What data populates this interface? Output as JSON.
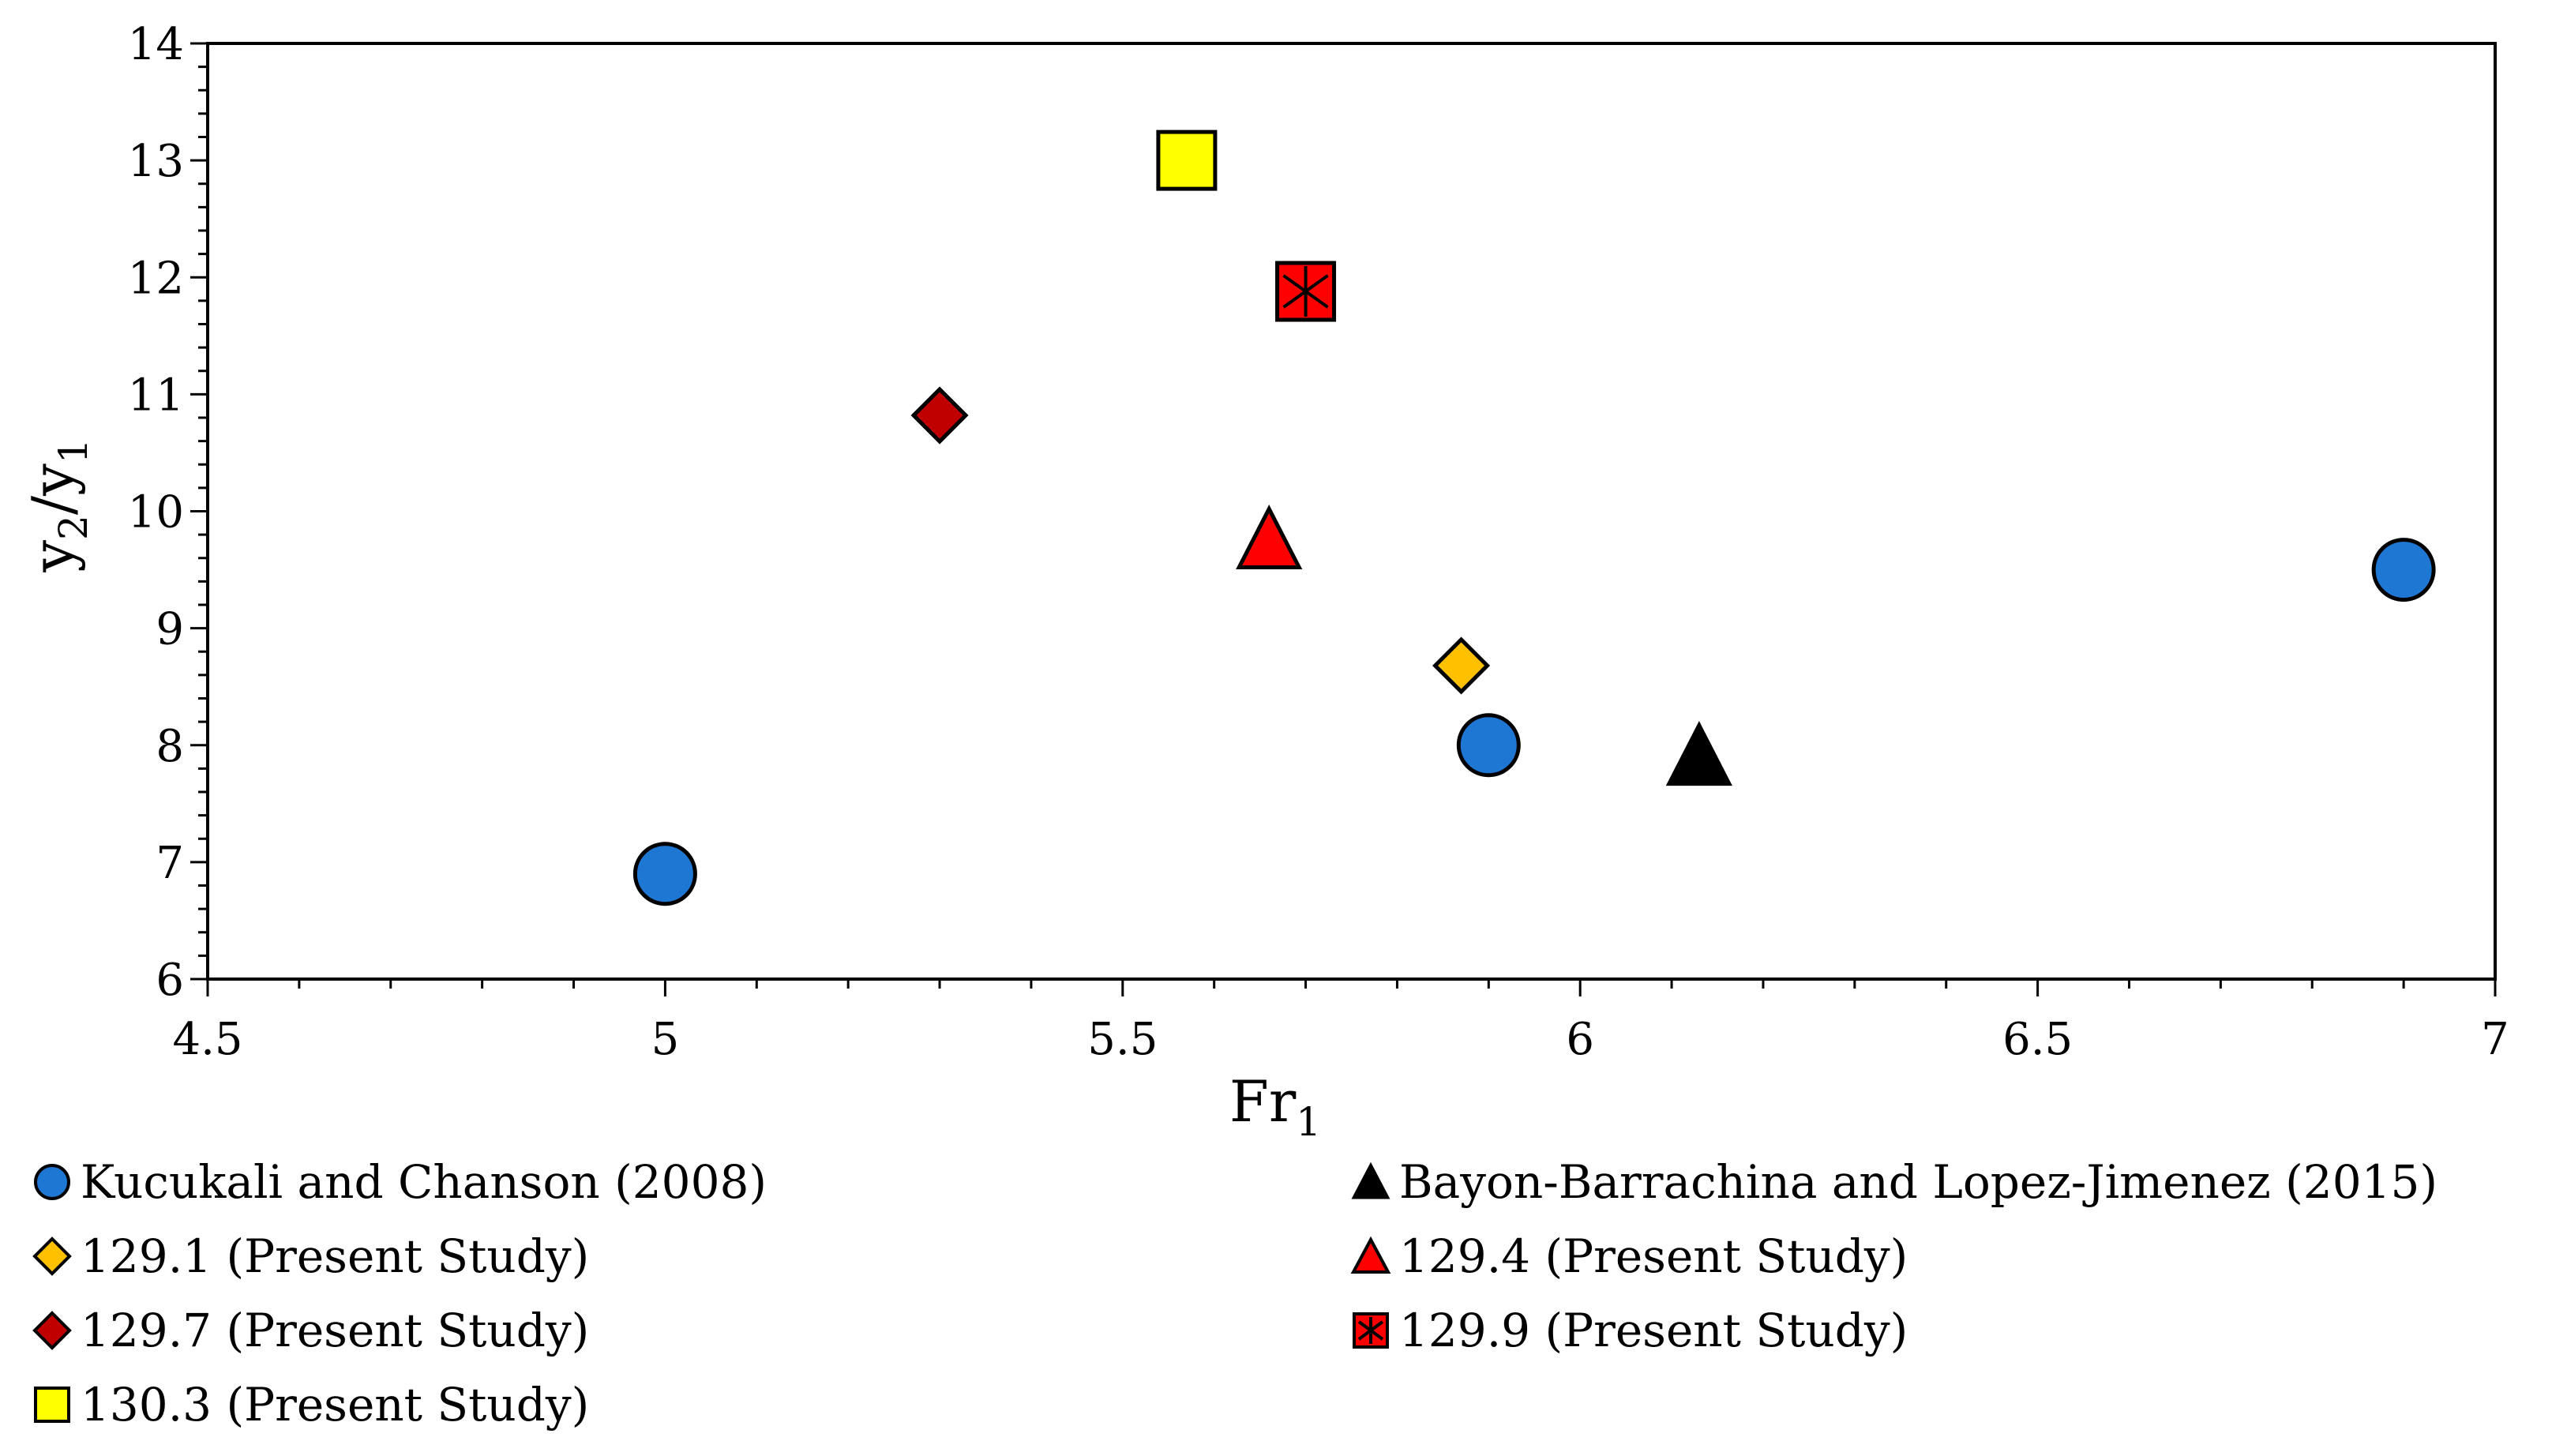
{
  "chart_data": {
    "type": "scatter",
    "title": "",
    "xlabel": "Fr",
    "xlabel_sub": "1",
    "ylabel": "y",
    "ylabel_parts": [
      "y",
      "2",
      "/y",
      "1"
    ],
    "xlim": [
      4.5,
      7
    ],
    "ylim": [
      6,
      14
    ],
    "xticks": [
      "4.5",
      "5",
      "5.5",
      "6",
      "6.5",
      "7"
    ],
    "yticks": [
      "6",
      "7",
      "8",
      "9",
      "10",
      "11",
      "12",
      "13",
      "14"
    ],
    "grid": false,
    "legend_position": "bottom",
    "series": [
      {
        "name": "Kucukali and Chanson (2008)",
        "marker": "circle",
        "color": "#1f77d4",
        "x": [
          5.0,
          5.9,
          6.9
        ],
        "y": [
          6.9,
          8.0,
          9.5
        ]
      },
      {
        "name": "Bayon-Barrachina and Lopez-Jimenez (2015)",
        "marker": "triangle",
        "color": "#000000",
        "x": [
          6.13
        ],
        "y": [
          7.9
        ]
      },
      {
        "name": "129.1 (Present Study)",
        "marker": "diamond",
        "color": "#ffc000",
        "x": [
          5.87
        ],
        "y": [
          8.68
        ]
      },
      {
        "name": "129.4 (Present Study)",
        "marker": "triangle",
        "color": "#ff0000",
        "x": [
          5.66
        ],
        "y": [
          9.75
        ]
      },
      {
        "name": "129.7 (Present Study)",
        "marker": "diamond",
        "color": "#c00000",
        "x": [
          5.3
        ],
        "y": [
          10.82
        ]
      },
      {
        "name": "129.9 (Present Study)",
        "marker": "square-star",
        "color": "#ff0000",
        "x": [
          5.7
        ],
        "y": [
          11.88
        ]
      },
      {
        "name": "130.3 (Present Study)",
        "marker": "square",
        "color": "#ffff00",
        "x": [
          5.57
        ],
        "y": [
          13.0
        ]
      }
    ]
  }
}
